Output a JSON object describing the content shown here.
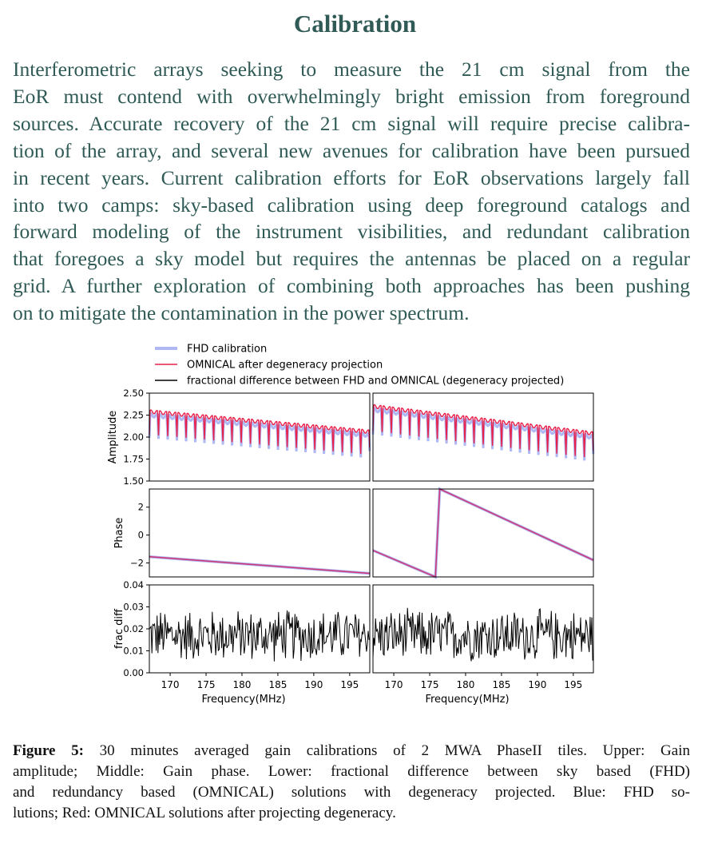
{
  "section_title": "Calibration",
  "paragraph_lines": [
    "Interferometric arrays seeking to measure the 21 cm signal from the",
    "EoR must contend with overwhelmingly bright emission from foreground",
    "sources. Accurate recovery of the 21 cm signal will require precise calibra-",
    "tion of the array, and several new avenues for calibration have been pursued",
    "in recent years. Current calibration efforts for EoR observations largely fall",
    "into two camps: sky-based calibration using deep foreground catalogs and",
    "forward modeling of the instrument visibilities, and redundant calibration",
    "that foregoes a sky model but requires the antennas be placed on a regular",
    "grid. A further exploration of combining both approaches has been pushing",
    "on to mitigate the contamination in the power spectrum."
  ],
  "caption": {
    "label": "Figure 5:",
    "lines": [
      " 30 minutes averaged gain calibrations of 2 MWA PhaseII tiles. Upper: Gain",
      "amplitude; Middle: Gain phase. Lower: fractional difference between sky based (FHD)",
      "and redundancy based (OMNICAL) solutions with degeneracy projected. Blue: FHD so-",
      "lutions; Red: OMNICAL solutions after projecting degeneracy."
    ]
  },
  "chart_data": {
    "type": "line",
    "layout": "3 rows x 2 columns (two tiles)",
    "legend": {
      "placement": "top",
      "entries": [
        {
          "label": "FHD calibration",
          "color": "#b0b8f4"
        },
        {
          "label": "OMNICAL after degeneracy projection",
          "color": "#e8204a"
        },
        {
          "label": "fractional difference between FHD and OMNICAL (degeneracy projected)",
          "color": "#000000"
        }
      ]
    },
    "colors": {
      "fhd": "#b0b8f4",
      "omnical": "#e8204a",
      "phase": "#cc3a7a",
      "diff": "#000000"
    },
    "x": {
      "label": "Frequency(MHz)",
      "range": [
        167.1,
        197.8
      ],
      "ticks": [
        170,
        175,
        180,
        185,
        190,
        195
      ]
    },
    "rows": [
      {
        "name": "amplitude",
        "ylabel": "Amplitude",
        "ylim": [
          1.5,
          2.5
        ],
        "yticks": [
          "1.50",
          "1.75",
          "2.00",
          "2.25",
          "2.50"
        ]
      },
      {
        "name": "phase",
        "ylabel": "Phase",
        "ylim": [
          -3.0,
          3.3
        ],
        "yticks": [
          "−2",
          "0",
          "2"
        ]
      },
      {
        "name": "frac_diff",
        "ylabel": "frac diff",
        "ylim": [
          0,
          0.04
        ],
        "yticks": [
          "0.00",
          "0.01",
          "0.02",
          "0.03",
          "0.04"
        ]
      }
    ],
    "amplitude_model": {
      "coarse_channel_width_MHz": 1.28,
      "tile1": {
        "top_start": 2.29,
        "top_end": 2.06,
        "dip_depth": 0.26
      },
      "tile2": {
        "top_start": 2.35,
        "top_end": 2.04,
        "dip_depth": 0.28
      },
      "fhd_offset": -0.04
    },
    "phase_lines": {
      "tile1": [
        [
          167.1,
          -1.55
        ],
        [
          197.8,
          -2.75
        ]
      ],
      "tile2": [
        [
          167.1,
          -1.1
        ],
        [
          175.8,
          -3.0
        ],
        [
          176.4,
          3.3
        ],
        [
          197.8,
          -1.8
        ]
      ]
    },
    "frac_diff_model": {
      "baseline": 0.017,
      "spread": 0.013,
      "max": 0.034,
      "min": 0.0
    }
  }
}
